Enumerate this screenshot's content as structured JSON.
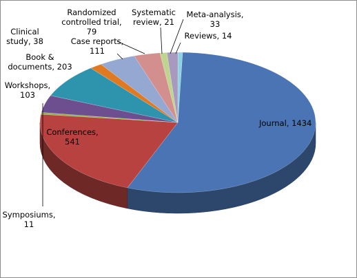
{
  "chart_data": {
    "type": "pie",
    "style": "3d",
    "slices": [
      {
        "name": "Journal",
        "value": 1434,
        "color": "#4a74b4",
        "label_lines": [
          "Journal, 1434"
        ]
      },
      {
        "name": "Conferences",
        "value": 541,
        "color": "#b84240",
        "label_lines": [
          "Conferences,",
          "541"
        ]
      },
      {
        "name": "Symposiums",
        "value": 11,
        "color": "#8fb04a",
        "label_lines": [
          "Symposiums,",
          "11"
        ]
      },
      {
        "name": "Workshops",
        "value": 103,
        "color": "#6d4f8f",
        "label_lines": [
          "Workshops,",
          "103"
        ]
      },
      {
        "name": "Book & documents",
        "value": 203,
        "color": "#2e93ad",
        "label_lines": [
          "Book &",
          "documents, 203"
        ]
      },
      {
        "name": "Clinical study",
        "value": 38,
        "color": "#e07a22",
        "label_lines": [
          "Clinical",
          "study, 38"
        ]
      },
      {
        "name": "Case reports",
        "value": 111,
        "color": "#94a8d2",
        "label_lines": [
          "Case reports,",
          "111"
        ]
      },
      {
        "name": "Randomized controlled trial",
        "value": 79,
        "color": "#d28f8d",
        "label_lines": [
          "Randomized",
          "controlled trial,",
          "79"
        ]
      },
      {
        "name": "Systematic review",
        "value": 21,
        "color": "#bfd48e",
        "label_lines": [
          "Systematic",
          "review, 21"
        ]
      },
      {
        "name": "Meta-analysis",
        "value": 33,
        "color": "#a899bf",
        "label_lines": [
          "Meta-analysis,",
          "33"
        ]
      },
      {
        "name": "Reviews",
        "value": 14,
        "color": "#8fd1e3",
        "label_lines": [
          "Reviews, 14"
        ]
      }
    ],
    "legend": "none",
    "data_labels": "category name and value"
  }
}
